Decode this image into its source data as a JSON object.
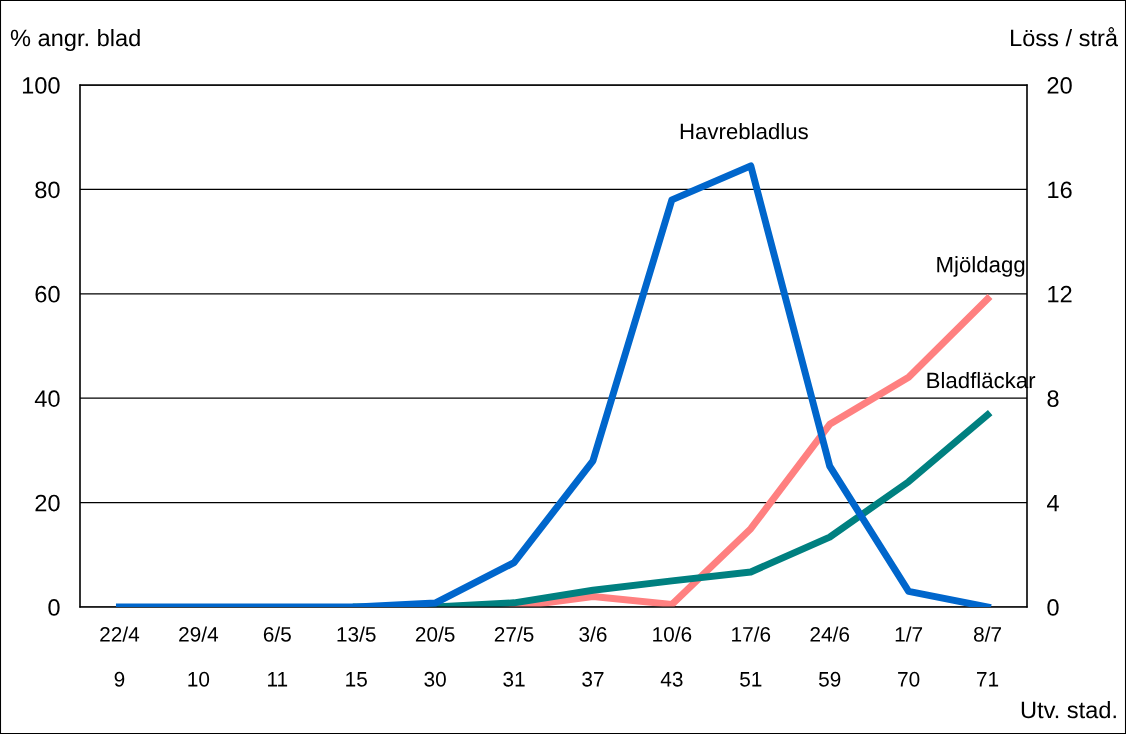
{
  "chart_data": {
    "type": "line",
    "categories": [
      "22/4\n\n9",
      "29/4\n\n10",
      "6/5\n\n11",
      "13/5\n\n15",
      "20/5\n\n30",
      "27/5\n\n31",
      "3/6\n\n37",
      "10/6\n\n43",
      "17/6\n\n51",
      "24/6\n\n59",
      "1/7\n\n70",
      "8/7\n\n71"
    ],
    "xlabel": "Utv. stad.",
    "ylabel": "% angr. blad",
    "y2label": "Löss / strå",
    "ylim": [
      0,
      100
    ],
    "yticks": [
      0,
      20,
      40,
      60,
      80,
      100
    ],
    "y2lim": [
      0,
      20
    ],
    "y2ticks": [
      0,
      4,
      8,
      12,
      16,
      20
    ],
    "grid": "y",
    "legend": false,
    "marker": "none",
    "line_style": "solid",
    "series": [
      {
        "name": "Havrebladlus",
        "color": "#0066cc",
        "axis": "y2",
        "values": [
          0,
          0,
          0,
          0,
          0.15,
          1.7,
          5.6,
          15.6,
          16.9,
          5.4,
          0.6,
          0
        ]
      },
      {
        "name": "Mjöldagg",
        "color": "#ff8080",
        "values": [
          null,
          null,
          null,
          null,
          0,
          0,
          2,
          0.5,
          15,
          35,
          44,
          59
        ]
      },
      {
        "name": "Bladfläckar",
        "color": "#008080",
        "values": [
          null,
          null,
          null,
          0,
          0,
          0.8,
          3.2,
          5,
          6.7,
          13.4,
          24,
          36.8
        ]
      }
    ]
  }
}
